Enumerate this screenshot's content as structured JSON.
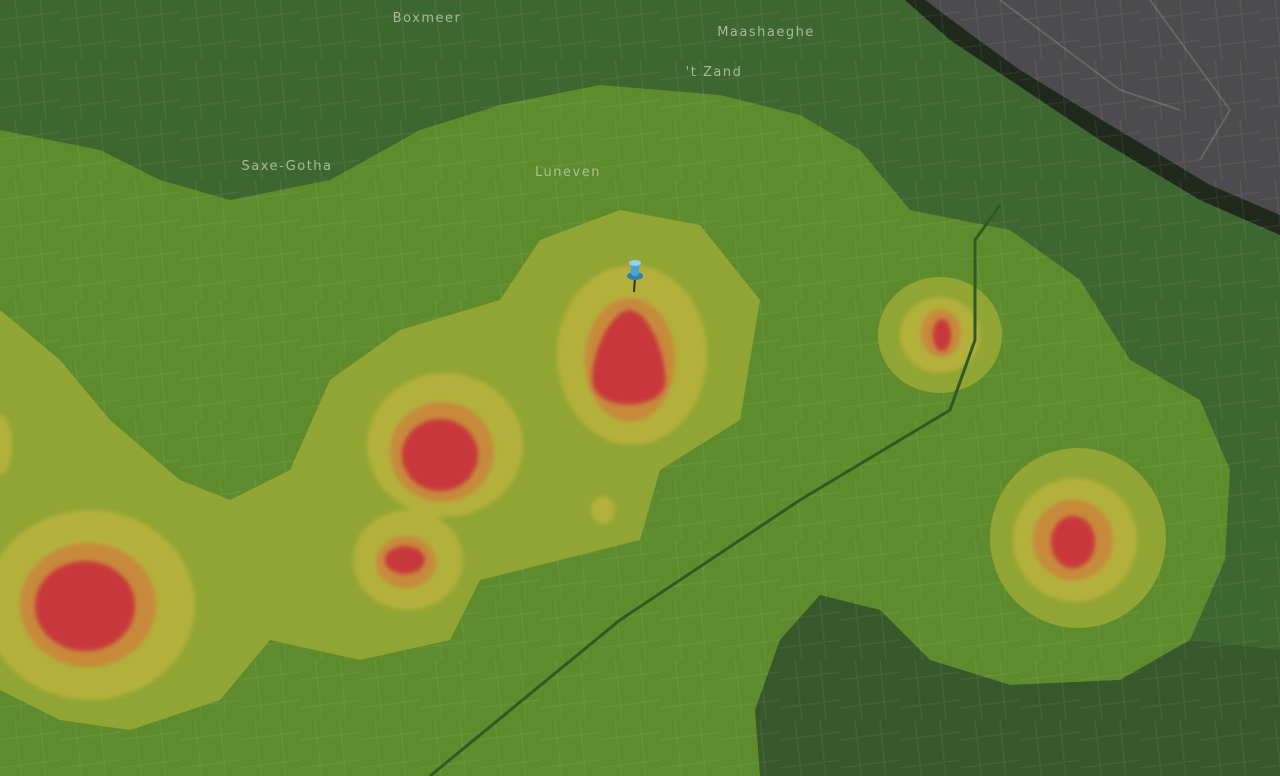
{
  "places": [
    "Boxmeer",
    "Maashaeghe",
    "'t Zand",
    "Saxe-Gotha",
    "Luneven"
  ]
}
